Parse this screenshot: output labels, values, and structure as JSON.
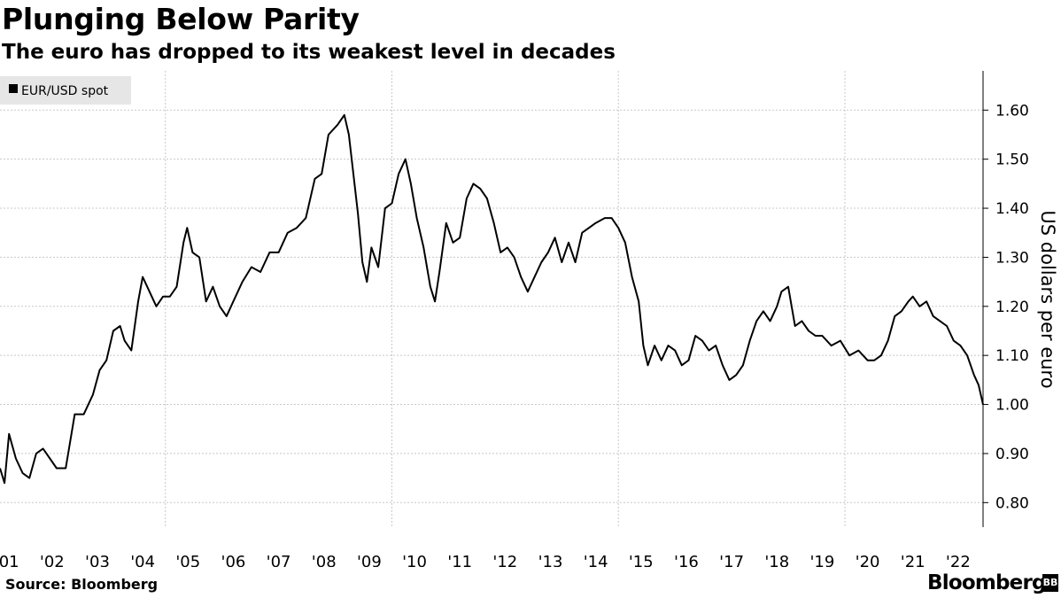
{
  "header": {
    "title": "Plunging Below Parity",
    "subtitle": "The euro has dropped to its weakest level in decades"
  },
  "footer": {
    "source": "Source: Bloomberg",
    "brand": "Bloomberg",
    "brand_mark": "BB"
  },
  "colors": {
    "line": "#000000",
    "grid": "#c8c8c8",
    "legend_bg": "#e6e6e6"
  },
  "chart_data": {
    "type": "line",
    "title": "Plunging Below Parity",
    "subtitle": "The euro has dropped to its weakest level in decades",
    "xlabel": "",
    "ylabel": "US dollars per euro",
    "ylim": [
      0.75,
      1.68
    ],
    "xlim": [
      2000.85,
      2022.55
    ],
    "y_axis_side": "right",
    "grid": true,
    "legend": {
      "position": "top-left",
      "entries": [
        "EUR/USD spot"
      ]
    },
    "y_ticks": [
      0.8,
      0.9,
      1.0,
      1.1,
      1.2,
      1.3,
      1.4,
      1.5,
      1.6
    ],
    "y_tick_labels": [
      "0.80",
      "0.90",
      "1.00",
      "1.10",
      "1.20",
      "1.30",
      "1.40",
      "1.50",
      "1.60"
    ],
    "x_ticks": [
      2001,
      2002,
      2003,
      2004,
      2005,
      2006,
      2007,
      2008,
      2009,
      2010,
      2011,
      2012,
      2013,
      2014,
      2015,
      2016,
      2017,
      2018,
      2019,
      2020,
      2021,
      2022
    ],
    "x_tick_labels": [
      "'01",
      "'02",
      "'03",
      "'04",
      "'05",
      "'06",
      "'07",
      "'08",
      "'09",
      "'10",
      "'11",
      "'12",
      "'13",
      "'14",
      "'15",
      "'16",
      "'17",
      "'18",
      "'19",
      "'20",
      "'21",
      "'22"
    ],
    "series": [
      {
        "name": "EUR/USD spot",
        "color": "#000000",
        "x": [
          2000.85,
          2000.95,
          2001.05,
          2001.2,
          2001.35,
          2001.5,
          2001.65,
          2001.8,
          2001.95,
          2002.1,
          2002.3,
          2002.5,
          2002.7,
          2002.9,
          2003.05,
          2003.2,
          2003.35,
          2003.5,
          2003.6,
          2003.75,
          2003.9,
          2004.0,
          2004.15,
          2004.3,
          2004.45,
          2004.6,
          2004.75,
          2004.9,
          2004.98,
          2005.1,
          2005.25,
          2005.4,
          2005.55,
          2005.7,
          2005.85,
          2006.0,
          2006.2,
          2006.4,
          2006.6,
          2006.8,
          2007.0,
          2007.2,
          2007.4,
          2007.6,
          2007.8,
          2007.95,
          2008.1,
          2008.3,
          2008.45,
          2008.55,
          2008.65,
          2008.75,
          2008.85,
          2008.95,
          2009.05,
          2009.2,
          2009.35,
          2009.5,
          2009.65,
          2009.8,
          2009.92,
          2010.05,
          2010.2,
          2010.35,
          2010.45,
          2010.55,
          2010.7,
          2010.85,
          2011.0,
          2011.15,
          2011.3,
          2011.45,
          2011.6,
          2011.75,
          2011.9,
          2012.05,
          2012.2,
          2012.35,
          2012.5,
          2012.65,
          2012.8,
          2012.95,
          2013.1,
          2013.25,
          2013.4,
          2013.55,
          2013.7,
          2013.85,
          2014.0,
          2014.2,
          2014.35,
          2014.5,
          2014.65,
          2014.8,
          2014.95,
          2015.05,
          2015.15,
          2015.3,
          2015.45,
          2015.6,
          2015.75,
          2015.9,
          2016.05,
          2016.2,
          2016.35,
          2016.5,
          2016.65,
          2016.8,
          2016.95,
          2017.1,
          2017.25,
          2017.4,
          2017.55,
          2017.7,
          2017.85,
          2018.0,
          2018.1,
          2018.25,
          2018.4,
          2018.55,
          2018.7,
          2018.85,
          2019.0,
          2019.2,
          2019.4,
          2019.6,
          2019.8,
          2020.0,
          2020.15,
          2020.3,
          2020.45,
          2020.6,
          2020.75,
          2020.9,
          2021.0,
          2021.15,
          2021.3,
          2021.45,
          2021.6,
          2021.75,
          2021.9,
          2022.05,
          2022.2,
          2022.35,
          2022.45,
          2022.55
        ],
        "values": [
          0.87,
          0.84,
          0.94,
          0.89,
          0.86,
          0.85,
          0.9,
          0.91,
          0.89,
          0.87,
          0.87,
          0.98,
          0.98,
          1.02,
          1.07,
          1.09,
          1.15,
          1.16,
          1.13,
          1.11,
          1.21,
          1.26,
          1.23,
          1.2,
          1.22,
          1.22,
          1.24,
          1.33,
          1.36,
          1.31,
          1.3,
          1.21,
          1.24,
          1.2,
          1.18,
          1.21,
          1.25,
          1.28,
          1.27,
          1.31,
          1.31,
          1.35,
          1.36,
          1.38,
          1.46,
          1.47,
          1.55,
          1.57,
          1.59,
          1.55,
          1.47,
          1.39,
          1.29,
          1.25,
          1.32,
          1.28,
          1.4,
          1.41,
          1.47,
          1.5,
          1.45,
          1.38,
          1.32,
          1.24,
          1.21,
          1.27,
          1.37,
          1.33,
          1.34,
          1.42,
          1.45,
          1.44,
          1.42,
          1.37,
          1.31,
          1.32,
          1.3,
          1.26,
          1.23,
          1.26,
          1.29,
          1.31,
          1.34,
          1.29,
          1.33,
          1.29,
          1.35,
          1.36,
          1.37,
          1.38,
          1.38,
          1.36,
          1.33,
          1.26,
          1.21,
          1.12,
          1.08,
          1.12,
          1.09,
          1.12,
          1.11,
          1.08,
          1.09,
          1.14,
          1.13,
          1.11,
          1.12,
          1.08,
          1.05,
          1.06,
          1.08,
          1.13,
          1.17,
          1.19,
          1.17,
          1.2,
          1.23,
          1.24,
          1.16,
          1.17,
          1.15,
          1.14,
          1.14,
          1.12,
          1.13,
          1.1,
          1.11,
          1.09,
          1.09,
          1.1,
          1.13,
          1.18,
          1.19,
          1.21,
          1.22,
          1.2,
          1.21,
          1.18,
          1.17,
          1.16,
          1.13,
          1.12,
          1.1,
          1.06,
          1.04,
          1.0
        ]
      }
    ]
  }
}
